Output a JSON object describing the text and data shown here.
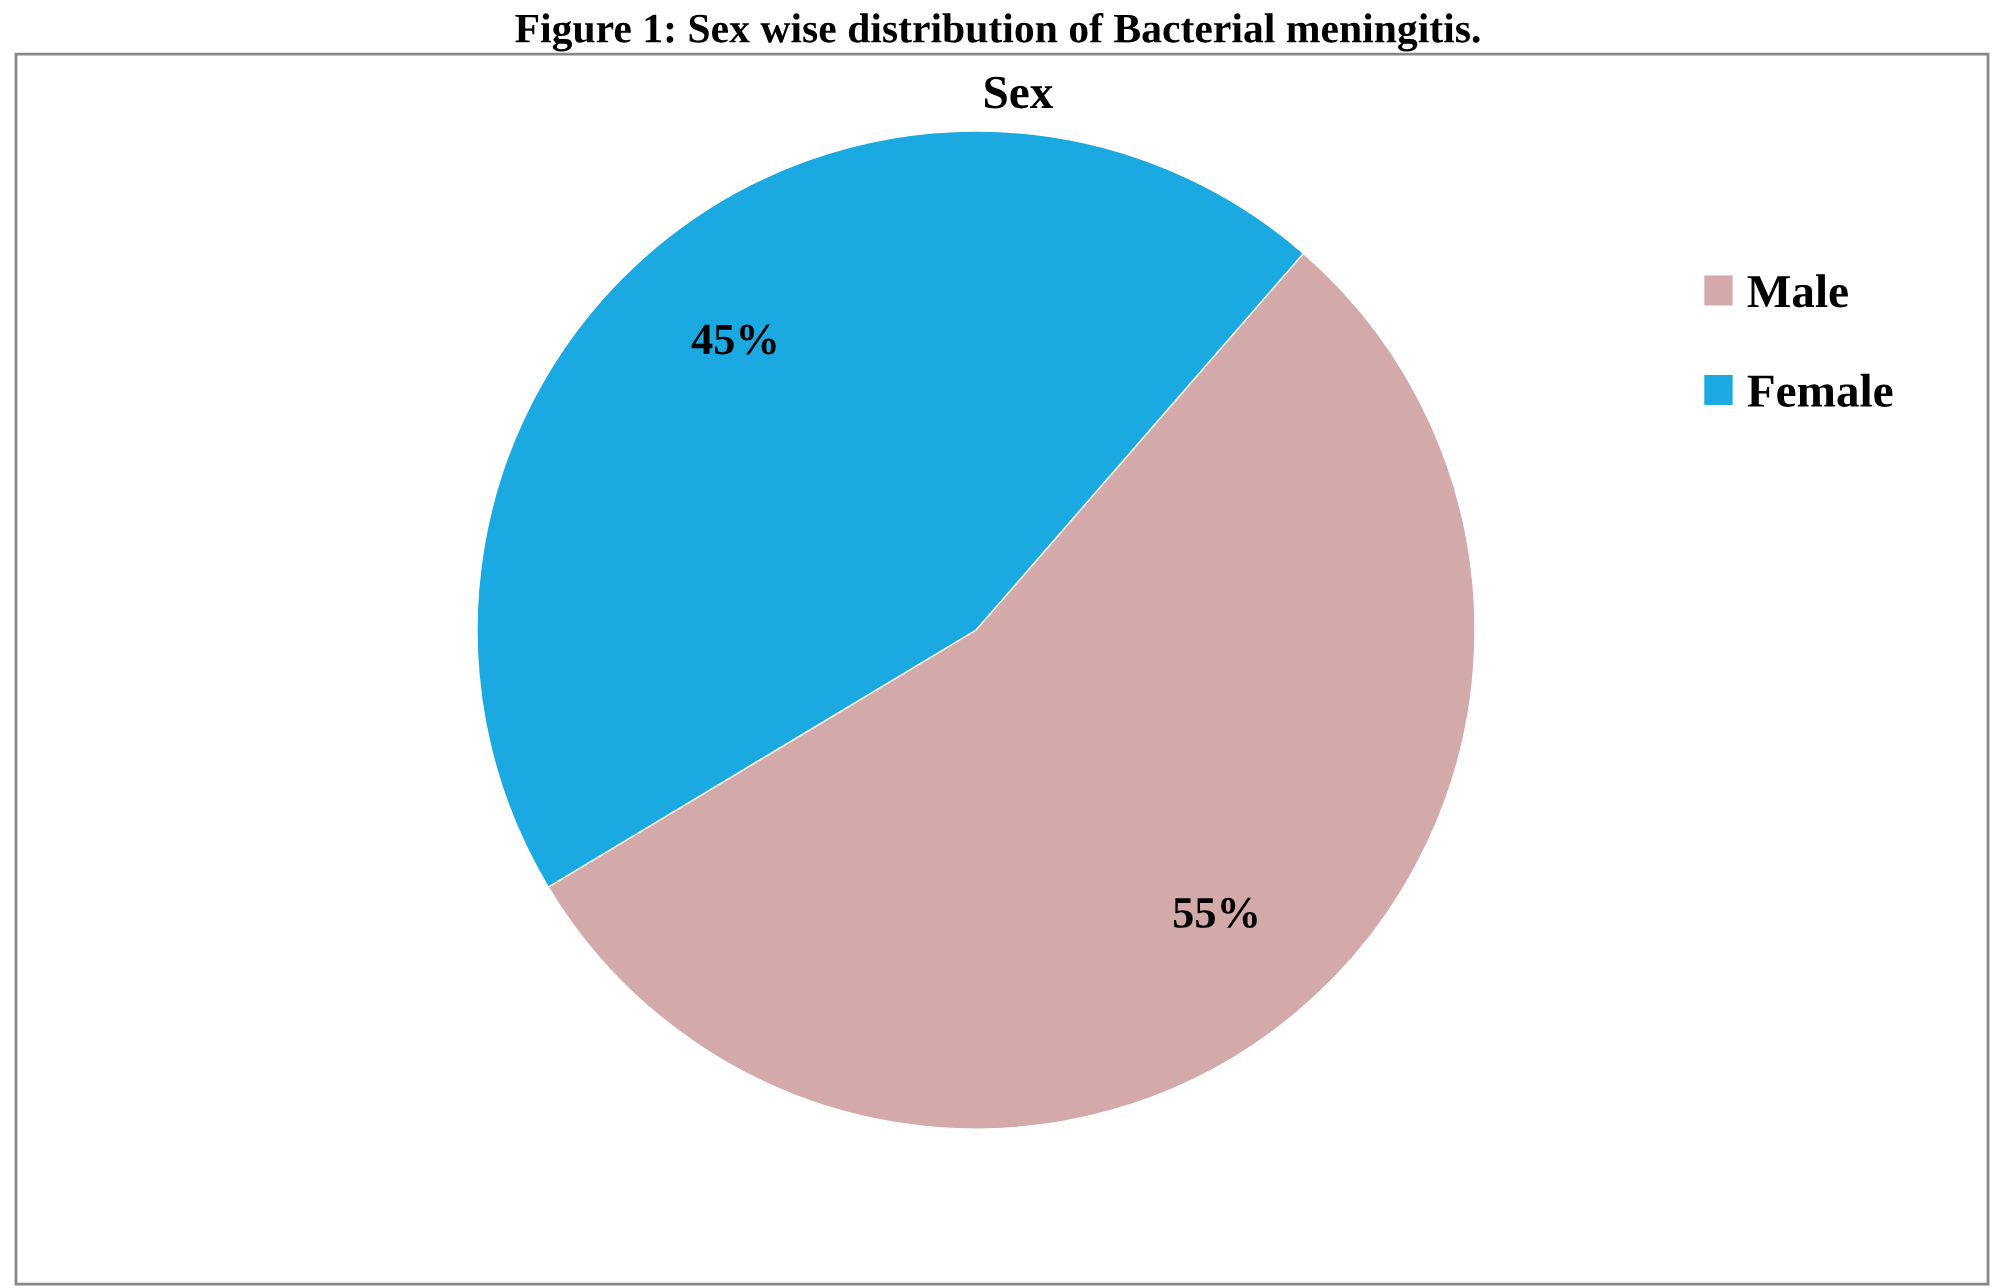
{
  "chart_data": {
    "type": "pie",
    "title": "Figure 1: Sex wise distribution of Bacterial meningitis.",
    "subtitle": "Sex",
    "categories": [
      "Male",
      "Female"
    ],
    "values": [
      55,
      45
    ],
    "colors": [
      "#d4a9a9",
      "#1aa9e0"
    ],
    "value_labels": [
      "55%",
      "45%"
    ],
    "legend": "right"
  }
}
